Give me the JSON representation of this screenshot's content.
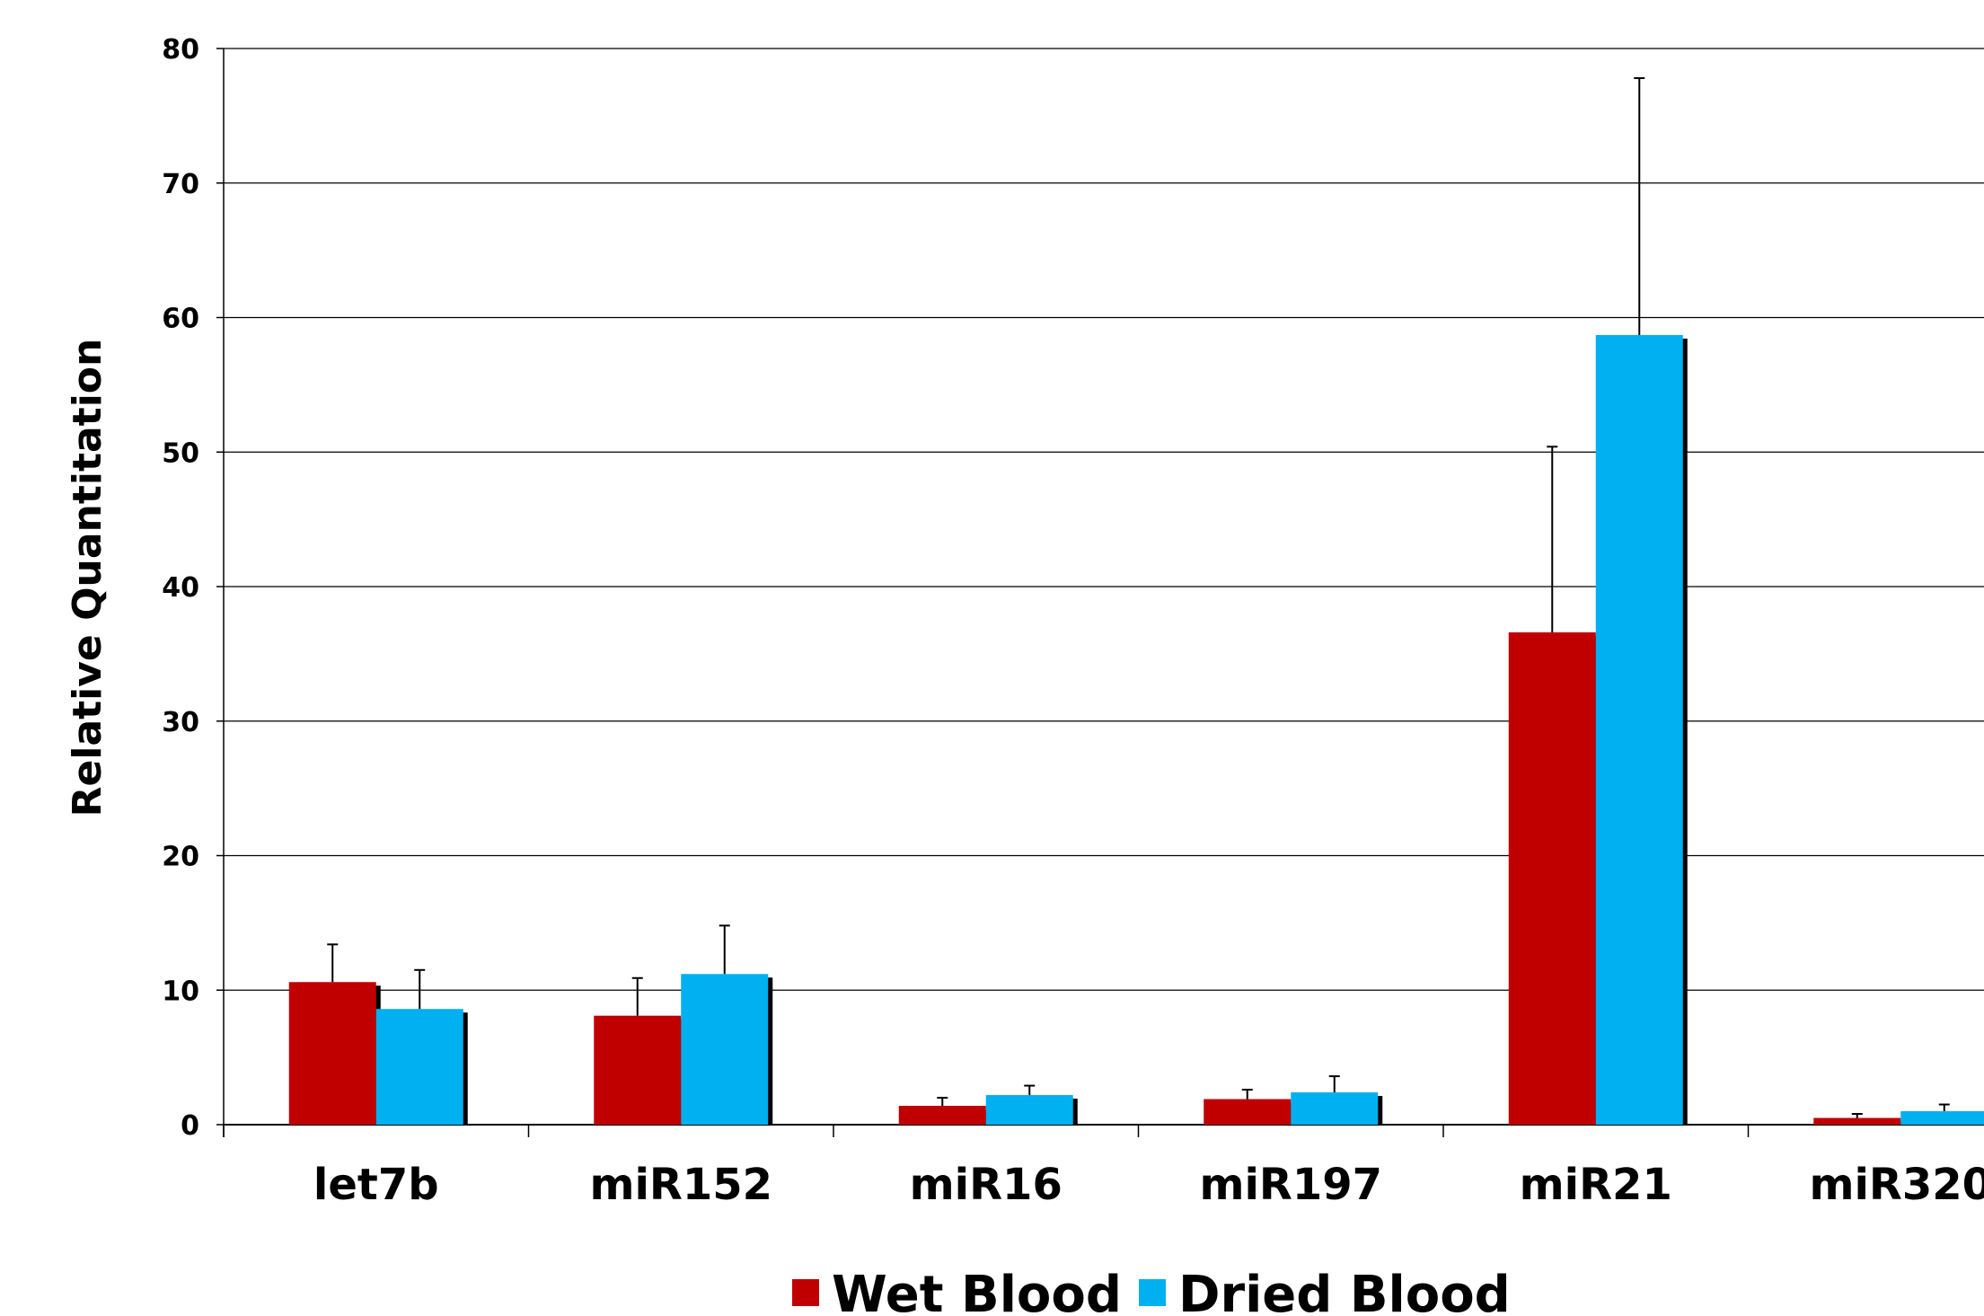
{
  "chart_data": {
    "type": "bar",
    "title": "",
    "xlabel": "",
    "ylabel": "Relative Quantitation",
    "ylim": [
      0,
      80
    ],
    "yticks": [
      "0",
      "10",
      "20",
      "30",
      "40",
      "50",
      "60",
      "70",
      "80"
    ],
    "grid": true,
    "legend_position": "bottom",
    "categories": [
      "let7b",
      "miR152",
      "miR16",
      "miR197",
      "miR21",
      "miR320"
    ],
    "series": [
      {
        "name": "Wet Blood",
        "color": "#C00000",
        "values": [
          10.6,
          8.1,
          1.4,
          1.9,
          36.6,
          0.5
        ],
        "error": [
          2.8,
          2.8,
          0.6,
          0.7,
          13.8,
          0.3
        ]
      },
      {
        "name": "Dried Blood",
        "color": "#00B0F0",
        "values": [
          8.6,
          11.2,
          2.2,
          2.4,
          58.7,
          1.0
        ],
        "error": [
          2.9,
          3.6,
          0.7,
          1.2,
          19.1,
          0.5
        ]
      }
    ]
  }
}
